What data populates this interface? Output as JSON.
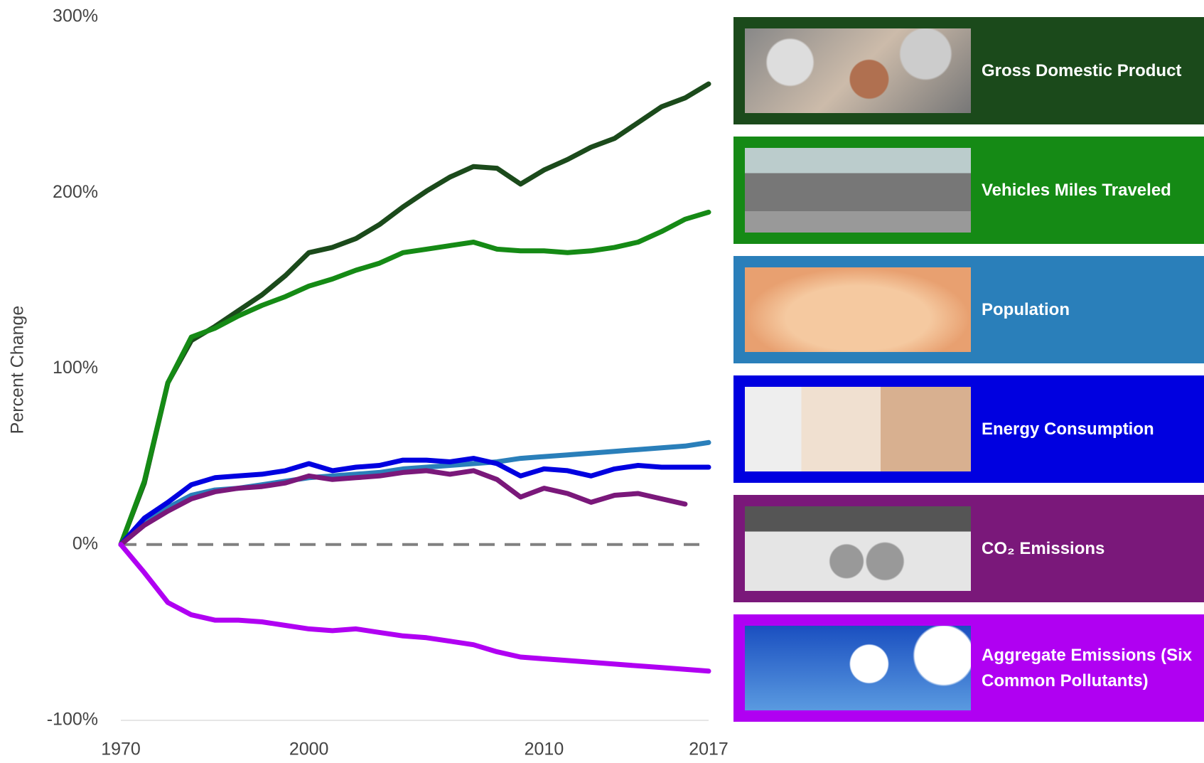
{
  "chart_data": {
    "type": "line",
    "y_label": "Percent Change",
    "categories": [
      "1970",
      null,
      null,
      null,
      null,
      null,
      null,
      null,
      "2000",
      null,
      null,
      null,
      null,
      null,
      null,
      null,
      null,
      null,
      "2010",
      null,
      null,
      null,
      null,
      null,
      null,
      "2017"
    ],
    "ylim": [
      -100,
      300
    ],
    "yticks": [
      {
        "value": -100,
        "label": "-100%"
      },
      {
        "value": 0,
        "label": "0%"
      },
      {
        "value": 100,
        "label": "100%"
      },
      {
        "value": 200,
        "label": "200%"
      },
      {
        "value": 300,
        "label": "300%"
      }
    ],
    "zero_line": true,
    "series": [
      {
        "name": "Gross Domestic Product",
        "color": "#1b4a1b",
        "values": [
          0,
          35,
          92,
          116,
          124,
          133,
          142,
          153,
          166,
          169,
          174,
          182,
          192,
          201,
          209,
          215,
          214,
          205,
          213,
          219,
          226,
          231,
          240,
          249,
          254,
          262
        ]
      },
      {
        "name": "Vehicles Miles Traveled",
        "color": "#158a15",
        "values": [
          0,
          36,
          92,
          118,
          123,
          130,
          136,
          141,
          147,
          151,
          156,
          160,
          166,
          168,
          170,
          172,
          168,
          167,
          167,
          166,
          167,
          169,
          172,
          178,
          185,
          189
        ]
      },
      {
        "name": "Population",
        "color": "#2a7fba",
        "values": [
          0,
          12,
          21,
          28,
          31,
          32,
          34,
          36,
          38,
          39,
          40,
          41,
          43,
          44,
          45,
          46,
          47,
          49,
          50,
          51,
          52,
          53,
          54,
          55,
          56,
          58
        ]
      },
      {
        "name": "Energy Consumption",
        "color": "#0000e0",
        "values": [
          0,
          15,
          24,
          34,
          38,
          39,
          40,
          42,
          46,
          42,
          44,
          45,
          48,
          48,
          47,
          49,
          46,
          39,
          43,
          42,
          39,
          43,
          45,
          44,
          44,
          44
        ]
      },
      {
        "name": "CO₂ Emissions",
        "color": "#7a187a",
        "values": [
          0,
          11,
          19,
          26,
          30,
          32,
          33,
          35,
          39,
          37,
          38,
          39,
          41,
          42,
          40,
          42,
          37,
          27,
          32,
          29,
          24,
          28,
          29,
          26,
          23,
          null
        ]
      },
      {
        "name": "Aggregate Emissions (Six Common Pollutants)",
        "color": "#b000f2",
        "values": [
          0,
          -16,
          -33,
          -40,
          -43,
          -43,
          -44,
          -46,
          -48,
          -49,
          -48,
          -50,
          -52,
          -53,
          -55,
          -57,
          -61,
          -64,
          -65,
          -66,
          -67,
          -68,
          -69,
          -70,
          -71,
          -72
        ]
      }
    ]
  }
}
